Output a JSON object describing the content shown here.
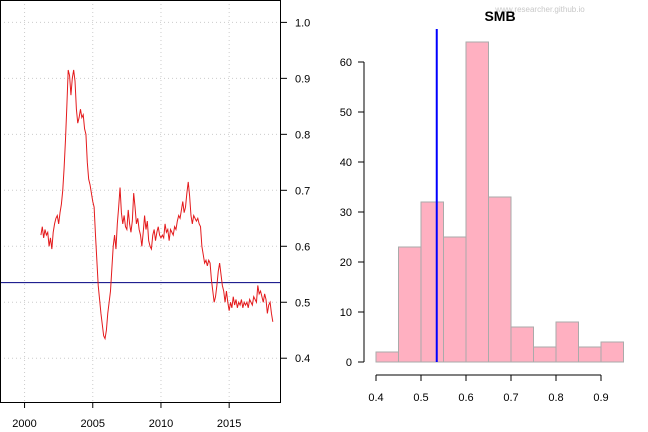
{
  "chart_data": [
    {
      "type": "line",
      "title": "",
      "xlabel": "",
      "ylabel": "",
      "xlim": [
        1998.2,
        2018.8
      ],
      "ylim": [
        0.32,
        1.04
      ],
      "x_ticks": [
        2000,
        2005,
        2010,
        2015
      ],
      "x_tick_labels": [
        "2000",
        "2005",
        "2010",
        "2015"
      ],
      "y_ticks": [
        0.4,
        0.5,
        0.6,
        0.7,
        0.8,
        0.9,
        1.0
      ],
      "y_tick_labels": [
        "0.4",
        "0.5",
        "0.6",
        "0.7",
        "0.8",
        "0.9",
        "1.0"
      ],
      "y_axis_side": "right",
      "grid": true,
      "hline": {
        "y": 0.535,
        "color": "#000080"
      },
      "series": [
        {
          "color": "#e41a1c",
          "points": [
            [
              2001.2,
              0.62
            ],
            [
              2001.3,
              0.635
            ],
            [
              2001.4,
              0.615
            ],
            [
              2001.5,
              0.63
            ],
            [
              2001.6,
              0.62
            ],
            [
              2001.7,
              0.625
            ],
            [
              2001.8,
              0.6
            ],
            [
              2001.9,
              0.615
            ],
            [
              2002.0,
              0.595
            ],
            [
              2002.1,
              0.625
            ],
            [
              2002.2,
              0.64
            ],
            [
              2002.3,
              0.65
            ],
            [
              2002.4,
              0.655
            ],
            [
              2002.5,
              0.64
            ],
            [
              2002.6,
              0.66
            ],
            [
              2002.7,
              0.675
            ],
            [
              2002.8,
              0.7
            ],
            [
              2002.9,
              0.74
            ],
            [
              2003.0,
              0.79
            ],
            [
              2003.1,
              0.85
            ],
            [
              2003.2,
              0.915
            ],
            [
              2003.3,
              0.905
            ],
            [
              2003.4,
              0.87
            ],
            [
              2003.5,
              0.9
            ],
            [
              2003.6,
              0.915
            ],
            [
              2003.7,
              0.895
            ],
            [
              2003.8,
              0.845
            ],
            [
              2003.9,
              0.82
            ],
            [
              2004.0,
              0.83
            ],
            [
              2004.1,
              0.845
            ],
            [
              2004.2,
              0.83
            ],
            [
              2004.3,
              0.835
            ],
            [
              2004.4,
              0.81
            ],
            [
              2004.5,
              0.8
            ],
            [
              2004.6,
              0.75
            ],
            [
              2004.7,
              0.72
            ],
            [
              2004.8,
              0.71
            ],
            [
              2004.9,
              0.695
            ],
            [
              2005.0,
              0.68
            ],
            [
              2005.1,
              0.67
            ],
            [
              2005.2,
              0.62
            ],
            [
              2005.3,
              0.575
            ],
            [
              2005.4,
              0.53
            ],
            [
              2005.5,
              0.505
            ],
            [
              2005.6,
              0.48
            ],
            [
              2005.7,
              0.46
            ],
            [
              2005.8,
              0.44
            ],
            [
              2005.9,
              0.435
            ],
            [
              2006.0,
              0.45
            ],
            [
              2006.1,
              0.48
            ],
            [
              2006.2,
              0.5
            ],
            [
              2006.3,
              0.52
            ],
            [
              2006.4,
              0.56
            ],
            [
              2006.5,
              0.6
            ],
            [
              2006.6,
              0.62
            ],
            [
              2006.7,
              0.595
            ],
            [
              2006.8,
              0.64
            ],
            [
              2006.9,
              0.67
            ],
            [
              2007.0,
              0.705
            ],
            [
              2007.1,
              0.66
            ],
            [
              2007.2,
              0.64
            ],
            [
              2007.3,
              0.655
            ],
            [
              2007.4,
              0.635
            ],
            [
              2007.5,
              0.63
            ],
            [
              2007.6,
              0.665
            ],
            [
              2007.7,
              0.64
            ],
            [
              2007.8,
              0.625
            ],
            [
              2007.9,
              0.645
            ],
            [
              2008.0,
              0.695
            ],
            [
              2008.1,
              0.67
            ],
            [
              2008.2,
              0.64
            ],
            [
              2008.3,
              0.65
            ],
            [
              2008.4,
              0.63
            ],
            [
              2008.5,
              0.62
            ],
            [
              2008.6,
              0.6
            ],
            [
              2008.7,
              0.625
            ],
            [
              2008.8,
              0.655
            ],
            [
              2008.9,
              0.63
            ],
            [
              2009.0,
              0.645
            ],
            [
              2009.1,
              0.61
            ],
            [
              2009.2,
              0.6
            ],
            [
              2009.3,
              0.595
            ],
            [
              2009.4,
              0.62
            ],
            [
              2009.5,
              0.63
            ],
            [
              2009.6,
              0.61
            ],
            [
              2009.7,
              0.625
            ],
            [
              2009.8,
              0.635
            ],
            [
              2009.9,
              0.62
            ],
            [
              2010.0,
              0.615
            ],
            [
              2010.1,
              0.62
            ],
            [
              2010.2,
              0.615
            ],
            [
              2010.3,
              0.64
            ],
            [
              2010.4,
              0.625
            ],
            [
              2010.5,
              0.63
            ],
            [
              2010.6,
              0.61
            ],
            [
              2010.7,
              0.63
            ],
            [
              2010.8,
              0.625
            ],
            [
              2010.9,
              0.62
            ],
            [
              2011.0,
              0.635
            ],
            [
              2011.1,
              0.63
            ],
            [
              2011.2,
              0.645
            ],
            [
              2011.3,
              0.655
            ],
            [
              2011.4,
              0.65
            ],
            [
              2011.5,
              0.665
            ],
            [
              2011.6,
              0.68
            ],
            [
              2011.7,
              0.66
            ],
            [
              2011.8,
              0.67
            ],
            [
              2011.9,
              0.695
            ],
            [
              2012.0,
              0.715
            ],
            [
              2012.1,
              0.69
            ],
            [
              2012.2,
              0.655
            ],
            [
              2012.3,
              0.64
            ],
            [
              2012.4,
              0.655
            ],
            [
              2012.5,
              0.65
            ],
            [
              2012.6,
              0.645
            ],
            [
              2012.7,
              0.65
            ],
            [
              2012.8,
              0.64
            ],
            [
              2012.9,
              0.635
            ],
            [
              2013.0,
              0.6
            ],
            [
              2013.1,
              0.585
            ],
            [
              2013.2,
              0.57
            ],
            [
              2013.3,
              0.575
            ],
            [
              2013.4,
              0.565
            ],
            [
              2013.5,
              0.575
            ],
            [
              2013.6,
              0.57
            ],
            [
              2013.7,
              0.54
            ],
            [
              2013.8,
              0.52
            ],
            [
              2013.9,
              0.5
            ],
            [
              2014.0,
              0.51
            ],
            [
              2014.1,
              0.53
            ],
            [
              2014.2,
              0.555
            ],
            [
              2014.3,
              0.57
            ],
            [
              2014.4,
              0.55
            ],
            [
              2014.5,
              0.53
            ],
            [
              2014.6,
              0.52
            ],
            [
              2014.7,
              0.5
            ],
            [
              2014.8,
              0.52
            ],
            [
              2014.9,
              0.5
            ],
            [
              2015.0,
              0.485
            ],
            [
              2015.1,
              0.5
            ],
            [
              2015.2,
              0.49
            ],
            [
              2015.3,
              0.51
            ],
            [
              2015.4,
              0.495
            ],
            [
              2015.5,
              0.505
            ],
            [
              2015.6,
              0.49
            ],
            [
              2015.7,
              0.5
            ],
            [
              2015.8,
              0.495
            ],
            [
              2015.9,
              0.505
            ],
            [
              2016.0,
              0.49
            ],
            [
              2016.1,
              0.5
            ],
            [
              2016.2,
              0.495
            ],
            [
              2016.3,
              0.5
            ],
            [
              2016.4,
              0.49
            ],
            [
              2016.5,
              0.505
            ],
            [
              2016.6,
              0.5
            ],
            [
              2016.7,
              0.495
            ],
            [
              2016.8,
              0.51
            ],
            [
              2016.9,
              0.505
            ],
            [
              2017.0,
              0.5
            ],
            [
              2017.1,
              0.53
            ],
            [
              2017.2,
              0.515
            ],
            [
              2017.3,
              0.52
            ],
            [
              2017.4,
              0.51
            ],
            [
              2017.5,
              0.5
            ],
            [
              2017.6,
              0.515
            ],
            [
              2017.7,
              0.505
            ],
            [
              2017.8,
              0.48
            ],
            [
              2017.9,
              0.495
            ],
            [
              2018.0,
              0.5
            ],
            [
              2018.1,
              0.48
            ],
            [
              2018.2,
              0.465
            ]
          ]
        }
      ]
    },
    {
      "type": "bar",
      "title": "SMB",
      "xlabel": "",
      "ylabel": "",
      "bins": [
        [
          0.4,
          0.45
        ],
        [
          0.45,
          0.5
        ],
        [
          0.5,
          0.55
        ],
        [
          0.55,
          0.6
        ],
        [
          0.6,
          0.65
        ],
        [
          0.65,
          0.7
        ],
        [
          0.7,
          0.75
        ],
        [
          0.75,
          0.8
        ],
        [
          0.8,
          0.85
        ],
        [
          0.85,
          0.9
        ],
        [
          0.9,
          0.95
        ]
      ],
      "values": [
        2,
        23,
        32,
        25,
        64,
        33,
        7,
        3,
        8,
        3,
        4
      ],
      "bar_fill": "#ffb0c1",
      "bar_stroke": "#aaaaaa",
      "xlim": [
        0.4,
        0.95
      ],
      "ylim": [
        0,
        64
      ],
      "x_ticks": [
        0.4,
        0.5,
        0.6,
        0.7,
        0.8,
        0.9
      ],
      "x_tick_labels": [
        "0.4",
        "0.5",
        "0.6",
        "0.7",
        "0.8",
        "0.9"
      ],
      "y_ticks": [
        0,
        10,
        20,
        30,
        40,
        50,
        60
      ],
      "y_tick_labels": [
        "0",
        "10",
        "20",
        "30",
        "40",
        "50",
        "60"
      ],
      "vline": {
        "x": 0.535,
        "color": "#0000ff"
      },
      "grid": false
    }
  ],
  "watermark": "www.researcher.github.io"
}
